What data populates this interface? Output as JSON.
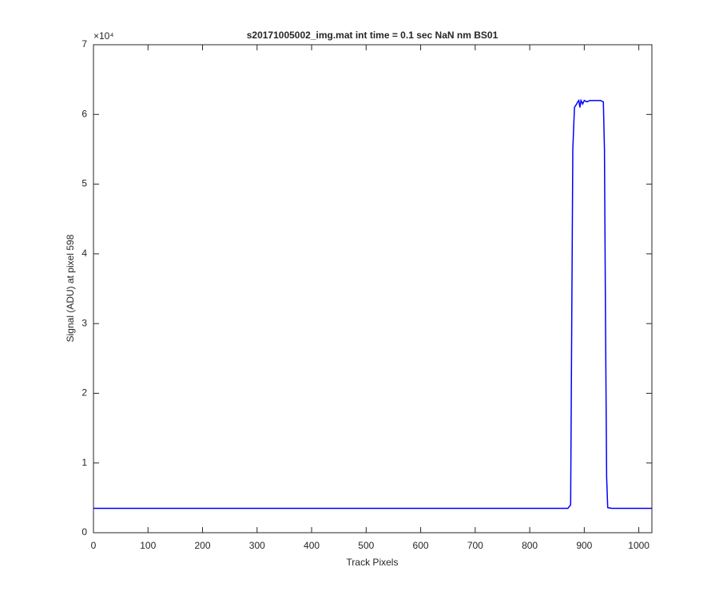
{
  "chart_data": {
    "type": "line",
    "title": "s20171005002_img.mat int time = 0.1 sec  NaN nm BS01",
    "x_label": "Track Pixels",
    "y_label": "Signal (ADU) at pixel 598",
    "y_exponent_label": "×10⁴",
    "color": "#0000ff",
    "x": [
      0,
      100,
      200,
      300,
      400,
      500,
      600,
      700,
      800,
      870,
      875,
      877,
      879,
      882,
      886,
      888,
      890,
      892,
      894,
      897,
      900,
      905,
      910,
      920,
      930,
      935,
      937,
      939,
      941,
      943,
      950,
      1000,
      1024
    ],
    "values": [
      3500,
      3500,
      3500,
      3500,
      3500,
      3500,
      3500,
      3500,
      3500,
      3500,
      4000,
      30000,
      55000,
      61000,
      61500,
      61800,
      62000,
      61000,
      62000,
      61500,
      62000,
      61800,
      62000,
      62000,
      62000,
      61800,
      55000,
      30000,
      8000,
      3600,
      3500,
      3500,
      3500
    ],
    "xlim": [
      0,
      1024
    ],
    "xticks": [
      0,
      100,
      200,
      300,
      400,
      500,
      600,
      700,
      800,
      900,
      1000
    ],
    "ylim": [
      0,
      70000
    ],
    "yticks": [
      {
        "value": 0,
        "label": "0"
      },
      {
        "value": 10000,
        "label": "1"
      },
      {
        "value": 20000,
        "label": "2"
      },
      {
        "value": 30000,
        "label": "3"
      },
      {
        "value": 40000,
        "label": "4"
      },
      {
        "value": 50000,
        "label": "5"
      },
      {
        "value": 60000,
        "label": "6"
      },
      {
        "value": 70000,
        "label": "7"
      }
    ],
    "grid": false
  }
}
